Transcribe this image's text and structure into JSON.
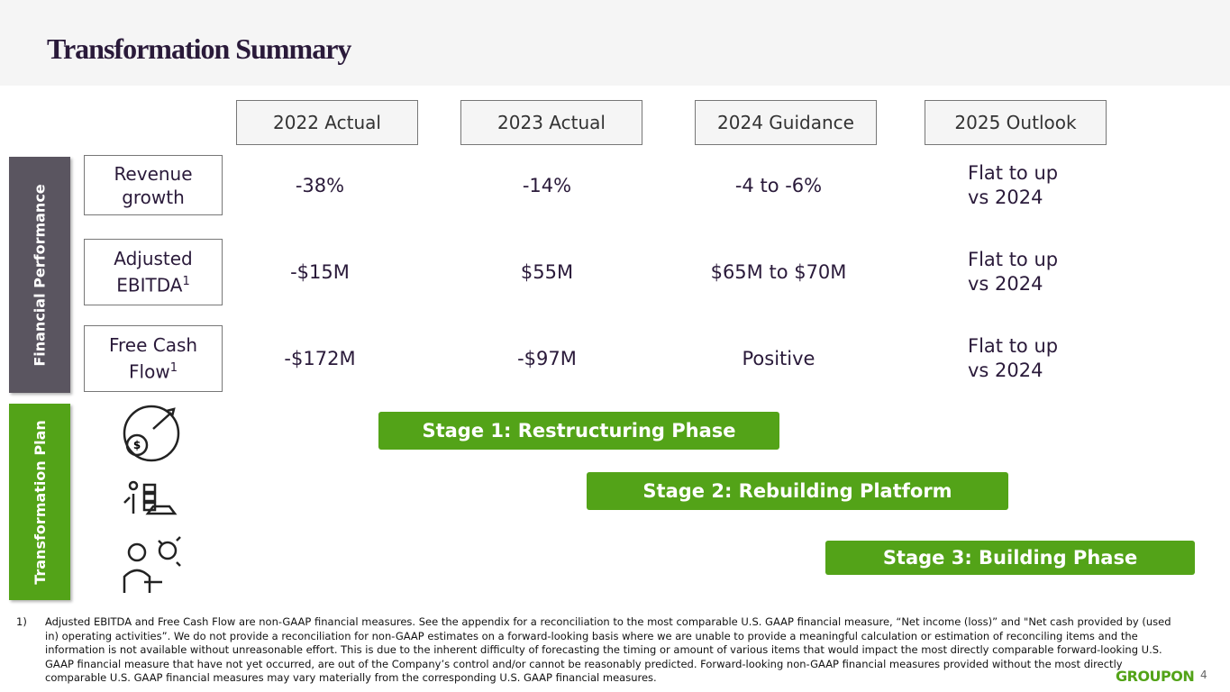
{
  "header": {
    "title": "Transformation Summary"
  },
  "columns": [
    "2022 Actual",
    "2023 Actual",
    "2024 Guidance",
    "2025 Outlook"
  ],
  "sections": {
    "financial": "Financial Performance",
    "plan": "Transformation Plan"
  },
  "rows": [
    {
      "label": "Revenue growth",
      "values": [
        "-38%",
        "-14%",
        "-4 to -6%",
        "Flat to up vs 2024"
      ]
    },
    {
      "label": "Adjusted EBITDA",
      "note_ref": "1",
      "values": [
        "-$15M",
        "$55M",
        "$65M to $70M",
        "Flat to up vs 2024"
      ]
    },
    {
      "label": "Free Cash Flow",
      "note_ref": "1",
      "values": [
        "-$172M",
        "-$97M",
        "Positive",
        "Flat to up vs 2024"
      ]
    }
  ],
  "stages": [
    "Stage 1: Restructuring Phase",
    "Stage 2: Rebuilding Platform",
    "Stage 3: Building Phase"
  ],
  "footnote": {
    "marker": "1)",
    "text": "Adjusted EBITDA and Free Cash Flow are non-GAAP financial measures. See the appendix for a reconciliation to the most comparable U.S. GAAP financial measure, “Net income (loss)” and \"Net cash provided by (used in) operating activities”. We do not provide a reconciliation for non-GAAP estimates on a forward-looking basis where we are unable to provide a meaningful calculation or estimation of reconciling items and the information is not available without unreasonable effort. This is due to the inherent difficulty of forecasting the timing or amount of various items that would impact the most directly comparable forward-looking U.S. GAAP financial measure that have not yet occurred, are out of the Company’s control and/or cannot be reasonably predicted. Forward-looking non-GAAP financial measures provided without the most directly comparable U.S. GAAP financial measures may vary materially from the corresponding U.S. GAAP financial measures."
  },
  "logo": "GROUPON",
  "page_number": "4"
}
